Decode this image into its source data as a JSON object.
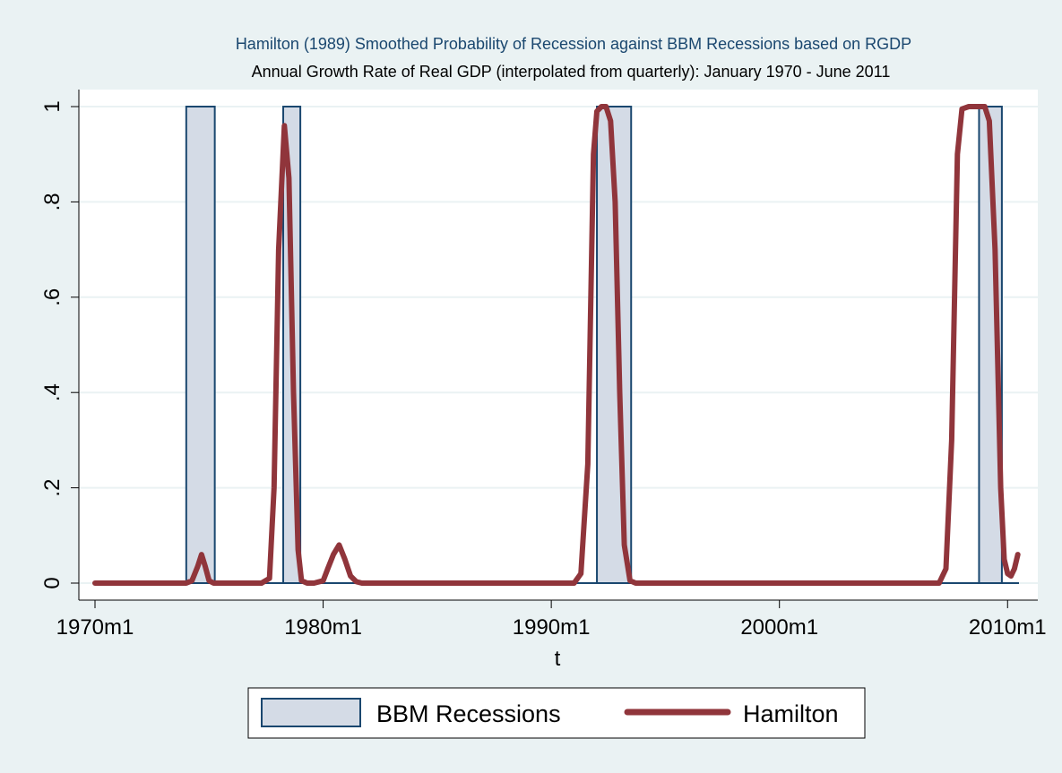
{
  "chart_data": {
    "type": "area",
    "title": "Hamilton (1989) Smoothed Probability of Recession against BBM Recessions based on RGDP",
    "subtitle": "Annual Growth Rate of Real GDP (interpolated from quarterly): January 1970 - June 2011",
    "xlabel": "t",
    "ylabel": "",
    "x_unit": "year",
    "xlim": [
      1970.0,
      2010.5
    ],
    "ylim": [
      0,
      1
    ],
    "x_ticks": [
      1970,
      1980,
      1990,
      2000,
      2010
    ],
    "x_tick_labels": [
      "1970m1",
      "1980m1",
      "1990m1",
      "2000m1",
      "2010m1"
    ],
    "y_ticks": [
      0,
      0.2,
      0.4,
      0.6,
      0.8,
      1
    ],
    "y_tick_labels": [
      "0",
      ".2",
      ".4",
      ".6",
      ".8",
      "1"
    ],
    "grid": true,
    "legend_position": "bottom",
    "series": [
      {
        "name": "BBM Recessions",
        "kind": "area",
        "color": "#1a476f",
        "fill": "#d4dbe6",
        "periods": [
          {
            "start": 1974.0,
            "end": 1975.25,
            "value": 1
          },
          {
            "start": 1978.25,
            "end": 1979.0,
            "value": 1
          },
          {
            "start": 1992.0,
            "end": 1993.5,
            "value": 1
          },
          {
            "start": 2008.75,
            "end": 2009.75,
            "value": 1
          }
        ]
      },
      {
        "name": "Hamilton",
        "kind": "line",
        "color": "#90353b",
        "x": [
          1970.0,
          1974.0,
          1974.25,
          1974.5,
          1974.67,
          1974.83,
          1975.0,
          1975.2,
          1977.3,
          1977.65,
          1977.85,
          1978.05,
          1978.3,
          1978.5,
          1978.7,
          1978.9,
          1979.05,
          1979.3,
          1979.6,
          1980.0,
          1980.2,
          1980.45,
          1980.7,
          1980.95,
          1981.2,
          1981.45,
          1981.7,
          1991.0,
          1991.3,
          1991.6,
          1991.85,
          1992.0,
          1992.2,
          1992.4,
          1992.6,
          1992.8,
          1993.0,
          1993.2,
          1993.45,
          1993.7,
          2007.0,
          2007.3,
          2007.55,
          2007.8,
          2008.0,
          2008.3,
          2008.7,
          2009.0,
          2009.2,
          2009.45,
          2009.7,
          2009.85,
          2010.0,
          2010.15,
          2010.3,
          2010.45
        ],
        "y": [
          0,
          0,
          0.005,
          0.035,
          0.06,
          0.035,
          0.005,
          0,
          0,
          0.01,
          0.2,
          0.7,
          0.96,
          0.85,
          0.4,
          0.07,
          0.005,
          0,
          0,
          0.005,
          0.03,
          0.06,
          0.08,
          0.05,
          0.015,
          0.003,
          0,
          0,
          0.02,
          0.25,
          0.9,
          0.99,
          1.0,
          1.0,
          0.97,
          0.8,
          0.4,
          0.08,
          0.005,
          0,
          0,
          0.03,
          0.3,
          0.9,
          0.995,
          1.0,
          1.0,
          1.0,
          0.97,
          0.7,
          0.2,
          0.05,
          0.02,
          0.015,
          0.03,
          0.06
        ]
      }
    ]
  }
}
